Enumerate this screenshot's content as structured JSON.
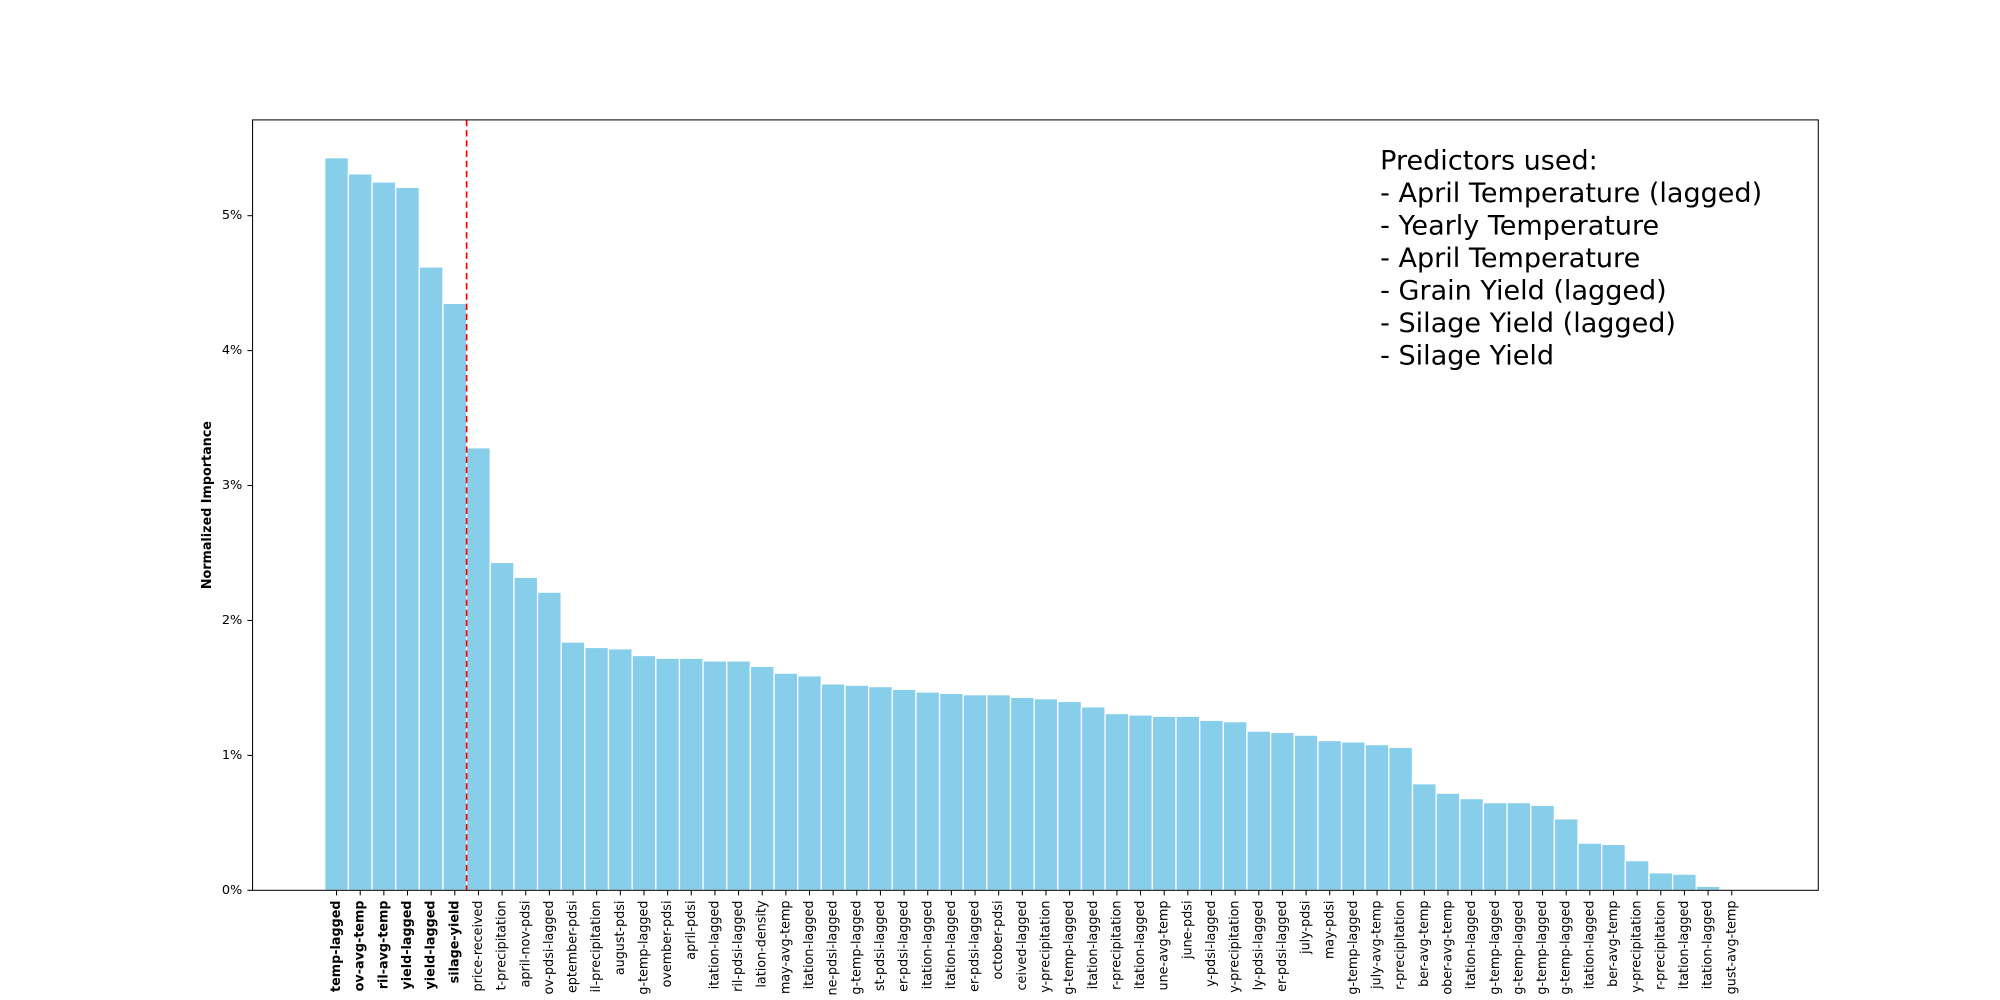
{
  "chart_data": {
    "type": "bar",
    "y_label": "Normalized Importance",
    "categories": [
      "temp-lagged",
      "ov-avg-temp",
      "ril-avg-temp",
      "yield-lagged",
      "yield-lagged",
      "silage-yield",
      "price-received",
      "t-precipitation",
      "april-nov-pdsi",
      "ov-pdsi-lagged",
      "eptember-pdsi",
      "il-precipitation",
      "august-pdsi",
      "g-temp-lagged",
      "ovember-pdsi",
      "april-pdsi",
      "itation-lagged",
      "ril-pdsi-lagged",
      "lation-density",
      "may-avg-temp",
      "itation-lagged",
      "ne-pdsi-lagged",
      "g-temp-lagged",
      "st-pdsi-lagged",
      "er-pdsi-lagged",
      "itation-lagged",
      "itation-lagged",
      "er-pdsi-lagged",
      "october-pdsi",
      "ceived-lagged",
      "y-precipitation",
      "g-temp-lagged",
      "itation-lagged",
      "r-precipitation",
      "itation-lagged",
      "une-avg-temp",
      "june-pdsi",
      "y-pdsi-lagged",
      "y-precipitation",
      "ly-pdsi-lagged",
      "er-pdsi-lagged",
      "july-pdsi",
      "may-pdsi",
      "g-temp-lagged",
      "july-avg-temp",
      "r-precipitation",
      "ber-avg-temp",
      "ober-avg-temp",
      "itation-lagged",
      "g-temp-lagged",
      "g-temp-lagged",
      "g-temp-lagged",
      "g-temp-lagged",
      "itation-lagged",
      "ber-avg-temp",
      "y-precipitation",
      "r-precipitation",
      "itation-lagged",
      "itation-lagged",
      "gust-avg-temp"
    ],
    "values": [
      5.43,
      5.31,
      5.25,
      5.21,
      4.62,
      4.35,
      3.28,
      2.43,
      2.32,
      2.21,
      1.84,
      1.8,
      1.79,
      1.74,
      1.72,
      1.72,
      1.7,
      1.7,
      1.66,
      1.61,
      1.59,
      1.53,
      1.52,
      1.51,
      1.49,
      1.47,
      1.46,
      1.45,
      1.45,
      1.43,
      1.42,
      1.4,
      1.36,
      1.31,
      1.3,
      1.29,
      1.29,
      1.26,
      1.25,
      1.18,
      1.17,
      1.15,
      1.11,
      1.1,
      1.08,
      1.06,
      0.79,
      0.72,
      0.68,
      0.65,
      0.65,
      0.63,
      0.53,
      0.35,
      0.34,
      0.22,
      0.13,
      0.12,
      0.03,
      0.005
    ],
    "color": "#87ceeb",
    "highlighted": [
      0,
      1,
      2,
      3,
      4,
      5
    ],
    "highlight_color": "#ff0000",
    "ylim": [
      0,
      5.71
    ],
    "yticks": [
      {
        "value": 0,
        "label": "0%"
      },
      {
        "value": 1,
        "label": "1%"
      },
      {
        "value": 2,
        "label": "2%"
      },
      {
        "value": 3,
        "label": "3%"
      },
      {
        "value": 4,
        "label": "4%"
      },
      {
        "value": 5,
        "label": "5%"
      }
    ],
    "annotation": [
      "Predictors used:",
      "- April Temperature (lagged)",
      "- Yearly Temperature",
      "- April Temperature",
      "- Grain Yield (lagged)",
      "- Silage Yield (lagged)",
      "- Silage Yield"
    ]
  }
}
